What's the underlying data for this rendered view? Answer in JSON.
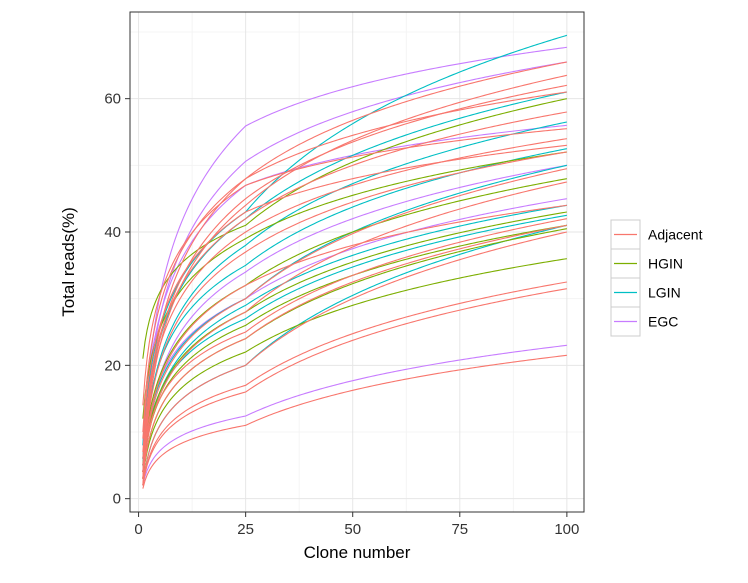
{
  "chart_data": {
    "type": "line",
    "title": "",
    "xlabel": "Clone number",
    "ylabel": "Total reads(%)",
    "xlim": [
      -2,
      104
    ],
    "ylim": [
      -2,
      73
    ],
    "xticks": [
      0,
      25,
      50,
      75,
      100
    ],
    "yticks": [
      0,
      20,
      40,
      60
    ],
    "grid": true,
    "legend_position": "right",
    "legend": [
      {
        "label": "Adjacent",
        "color": "#F8766D"
      },
      {
        "label": "HGIN",
        "color": "#7CAE00"
      },
      {
        "label": "LGIN",
        "color": "#00BFC4"
      },
      {
        "label": "EGC",
        "color": "#C77CFF"
      }
    ],
    "series": [
      {
        "group": "EGC",
        "y1": 5,
        "y25": 55.9,
        "y100": 67.7
      },
      {
        "group": "EGC",
        "y1": 4,
        "y25": 50.6,
        "y100": 65.5
      },
      {
        "group": "EGC",
        "y1": 2,
        "y25": 12.4,
        "y100": 23
      },
      {
        "group": "EGC",
        "y1": 6,
        "y25": 30,
        "y100": 45
      },
      {
        "group": "EGC",
        "y1": 8,
        "y25": 47,
        "y100": 56
      },
      {
        "group": "EGC",
        "y1": 3,
        "y25": 34,
        "y100": 50
      },
      {
        "group": "LGIN",
        "y1": 8,
        "y25": 43,
        "y100": 69.5
      },
      {
        "group": "LGIN",
        "y1": 6,
        "y25": 42,
        "y100": 61
      },
      {
        "group": "LGIN",
        "y1": 4,
        "y25": 38,
        "y100": 56.5
      },
      {
        "group": "LGIN",
        "y1": 6,
        "y25": 35,
        "y100": 52.5
      },
      {
        "group": "LGIN",
        "y1": 5,
        "y25": 30,
        "y100": 50
      },
      {
        "group": "LGIN",
        "y1": 3,
        "y25": 29,
        "y100": 44
      },
      {
        "group": "LGIN",
        "y1": 5,
        "y25": 27,
        "y100": 42.5
      },
      {
        "group": "LGIN",
        "y1": 2,
        "y25": 20,
        "y100": 41
      },
      {
        "group": "HGIN",
        "y1": 21,
        "y25": 41,
        "y100": 60
      },
      {
        "group": "HGIN",
        "y1": 12,
        "y25": 39,
        "y100": 52
      },
      {
        "group": "HGIN",
        "y1": 5,
        "y25": 32,
        "y100": 48
      },
      {
        "group": "HGIN",
        "y1": 4,
        "y25": 28,
        "y100": 43
      },
      {
        "group": "HGIN",
        "y1": 4,
        "y25": 26,
        "y100": 41
      },
      {
        "group": "HGIN",
        "y1": 3,
        "y25": 22,
        "y100": 36
      },
      {
        "group": "HGIN",
        "y1": 3,
        "y25": 24,
        "y100": 40.5
      },
      {
        "group": "Adjacent",
        "y1": 3,
        "y25": 48,
        "y100": 65.5
      },
      {
        "group": "Adjacent",
        "y1": 2,
        "y25": 44,
        "y100": 63.5
      },
      {
        "group": "Adjacent",
        "y1": 3,
        "y25": 45,
        "y100": 62
      },
      {
        "group": "Adjacent",
        "y1": 10,
        "y25": 48,
        "y100": 61
      },
      {
        "group": "Adjacent",
        "y1": 7,
        "y25": 42,
        "y100": 58
      },
      {
        "group": "Adjacent",
        "y1": 14,
        "y25": 47,
        "y100": 55.5
      },
      {
        "group": "Adjacent",
        "y1": 6,
        "y25": 40,
        "y100": 54
      },
      {
        "group": "Adjacent",
        "y1": 9,
        "y25": 43,
        "y100": 53
      },
      {
        "group": "Adjacent",
        "y1": 4,
        "y25": 37,
        "y100": 52
      },
      {
        "group": "Adjacent",
        "y1": 4,
        "y25": 30,
        "y100": 49.5
      },
      {
        "group": "Adjacent",
        "y1": 3,
        "y25": 28,
        "y100": 47.5
      },
      {
        "group": "Adjacent",
        "y1": 5,
        "y25": 25,
        "y100": 42
      },
      {
        "group": "Adjacent",
        "y1": 3,
        "y25": 24,
        "y100": 41
      },
      {
        "group": "Adjacent",
        "y1": 2,
        "y25": 20,
        "y100": 40
      },
      {
        "group": "Adjacent",
        "y1": 2,
        "y25": 17,
        "y100": 32.5
      },
      {
        "group": "Adjacent",
        "y1": 2,
        "y25": 16,
        "y100": 31.5
      },
      {
        "group": "Adjacent",
        "y1": 1.5,
        "y25": 11,
        "y100": 21.5
      },
      {
        "group": "Adjacent",
        "y1": 4,
        "y25": 32,
        "y100": 44
      }
    ]
  }
}
